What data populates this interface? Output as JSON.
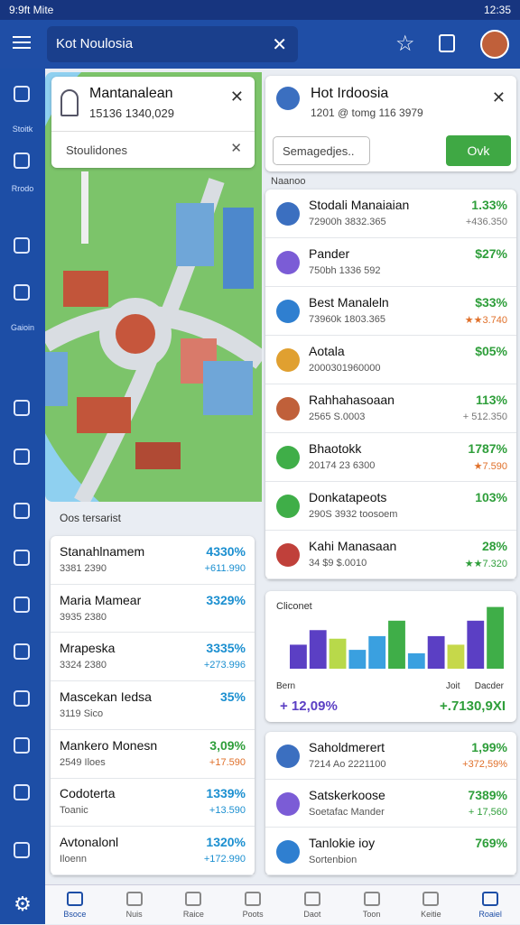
{
  "status": {
    "left": "9:9ft Mite",
    "right": "12:35"
  },
  "search": {
    "text": "Kot Noulosia"
  },
  "sidebar": [
    "Stoitk",
    "Rrodo",
    "Gaioin"
  ],
  "map_card": {
    "title": "Mantanalean",
    "subtitle": "15136 1340,029",
    "field": "Stoulidones"
  },
  "left_section": "Oos tersarist",
  "left_list": [
    {
      "name": "Stanahlnamem",
      "sub": "3381 2390",
      "value": "4330%",
      "change": "+611.990",
      "value_color": "#1b8fd0",
      "change_color": "#1b8fd0"
    },
    {
      "name": "Maria Mamear",
      "sub": "3935 2380",
      "value": "3329%",
      "value_color": "#1b8fd0"
    },
    {
      "name": "Mrapeska",
      "sub": "3324 2380",
      "value": "3335%",
      "change": "+273.996",
      "value_color": "#1b8fd0",
      "change_color": "#1b8fd0"
    },
    {
      "name": "Mascekan Iedsa",
      "sub": "3119 Sico",
      "value": "35%",
      "value_color": "#1b8fd0"
    },
    {
      "name": "Mankero Monesn",
      "sub": "2549 Iloes",
      "value": "3,09%",
      "change": "+17.590",
      "value_color": "#2e9e3a",
      "change_color": "#e0702a"
    },
    {
      "name": "Codoterta",
      "sub": "Toanic",
      "value": "1339%",
      "change": "+13.590",
      "value_color": "#1b8fd0",
      "change_color": "#1b8fd0"
    },
    {
      "name": "Avtonalonl",
      "sub": "Iloenn",
      "value": "1320%",
      "change": "+172.990",
      "value_color": "#1b8fd0",
      "change_color": "#1b8fd0"
    }
  ],
  "right_card": {
    "title": "Hot Irdoosia",
    "subtitle": "1201 @ tomg 116 3979",
    "input": "Semagedjes..",
    "button": "Ovk"
  },
  "right_section": "Naanoo",
  "right_list": [
    {
      "name": "Stodali Manaiaian",
      "sub": "72900h 3832.365",
      "value": "1.33%",
      "change": "+436.350",
      "value_color": "#2e9e3a",
      "change_color": "#777"
    },
    {
      "name": "Pander",
      "sub": "750bh 1336 592",
      "value": "$27%",
      "value_color": "#2e9e3a"
    },
    {
      "name": "Best Manaleln",
      "sub": "73960k 1803.365",
      "value": "$33%",
      "change": "★★3.740",
      "value_color": "#2e9e3a",
      "change_color": "#e0702a"
    },
    {
      "name": "Aotala",
      "sub": "2000301960000",
      "value": "$05%",
      "value_color": "#2e9e3a"
    },
    {
      "name": "Rahhahasoaan",
      "sub": "2565 S.0003",
      "value": "113%",
      "change": "+ 512.350",
      "value_color": "#2e9e3a",
      "change_color": "#777"
    },
    {
      "name": "Bhaotokk",
      "sub": "20174 23 6300",
      "value": "1787%",
      "change": "★7.590",
      "value_color": "#2e9e3a",
      "change_color": "#e0702a"
    },
    {
      "name": "Donkatapeots",
      "sub": "290S 3932 toosoem",
      "value": "103%",
      "value_color": "#2e9e3a"
    },
    {
      "name": "Kahi Manasaan",
      "sub": "34 $9 $.0010",
      "value": "28%",
      "change": "★★7.320",
      "value_color": "#2e9e3a",
      "change_color": "#2e9e3a"
    }
  ],
  "chart": {
    "title": "Cliconet",
    "labels": [
      "Bern",
      "Joit",
      "Dacder"
    ],
    "values": [
      28,
      45,
      35,
      22,
      38,
      56,
      18,
      38,
      28,
      56,
      72
    ],
    "colors": [
      "#5b3fc4",
      "#5b3fc4",
      "#b8d94a",
      "#3aa0e0",
      "#3aa0e0",
      "#3fae48",
      "#3aa0e0",
      "#5b3fc4",
      "#c6d84a",
      "#5b3fc4",
      "#3fae48"
    ],
    "ylim": [
      0,
      80
    ],
    "footer_left": "+ 12,09%",
    "footer_right": "+.7130,9XI"
  },
  "bottom_list": [
    {
      "name": "Saholdmerert",
      "sub": "7214 Ao 2221100",
      "value": "1,99%",
      "change": "+372,59%",
      "value_color": "#2e9e3a",
      "change_color": "#e0702a"
    },
    {
      "name": "Satskerkoose",
      "sub": "Soetafac Mander",
      "value": "7389%",
      "change": "+ 17,560",
      "value_color": "#2e9e3a",
      "change_color": "#2e9e3a"
    },
    {
      "name": "Tanlokie ioy",
      "sub": "Sortenbion",
      "value": "769%",
      "value_color": "#2e9e3a"
    }
  ],
  "nav": [
    "Bsoce",
    "Nuis",
    "Raice",
    "Poots",
    "Daot",
    "Toon",
    "Keitie",
    "Roaiel"
  ]
}
